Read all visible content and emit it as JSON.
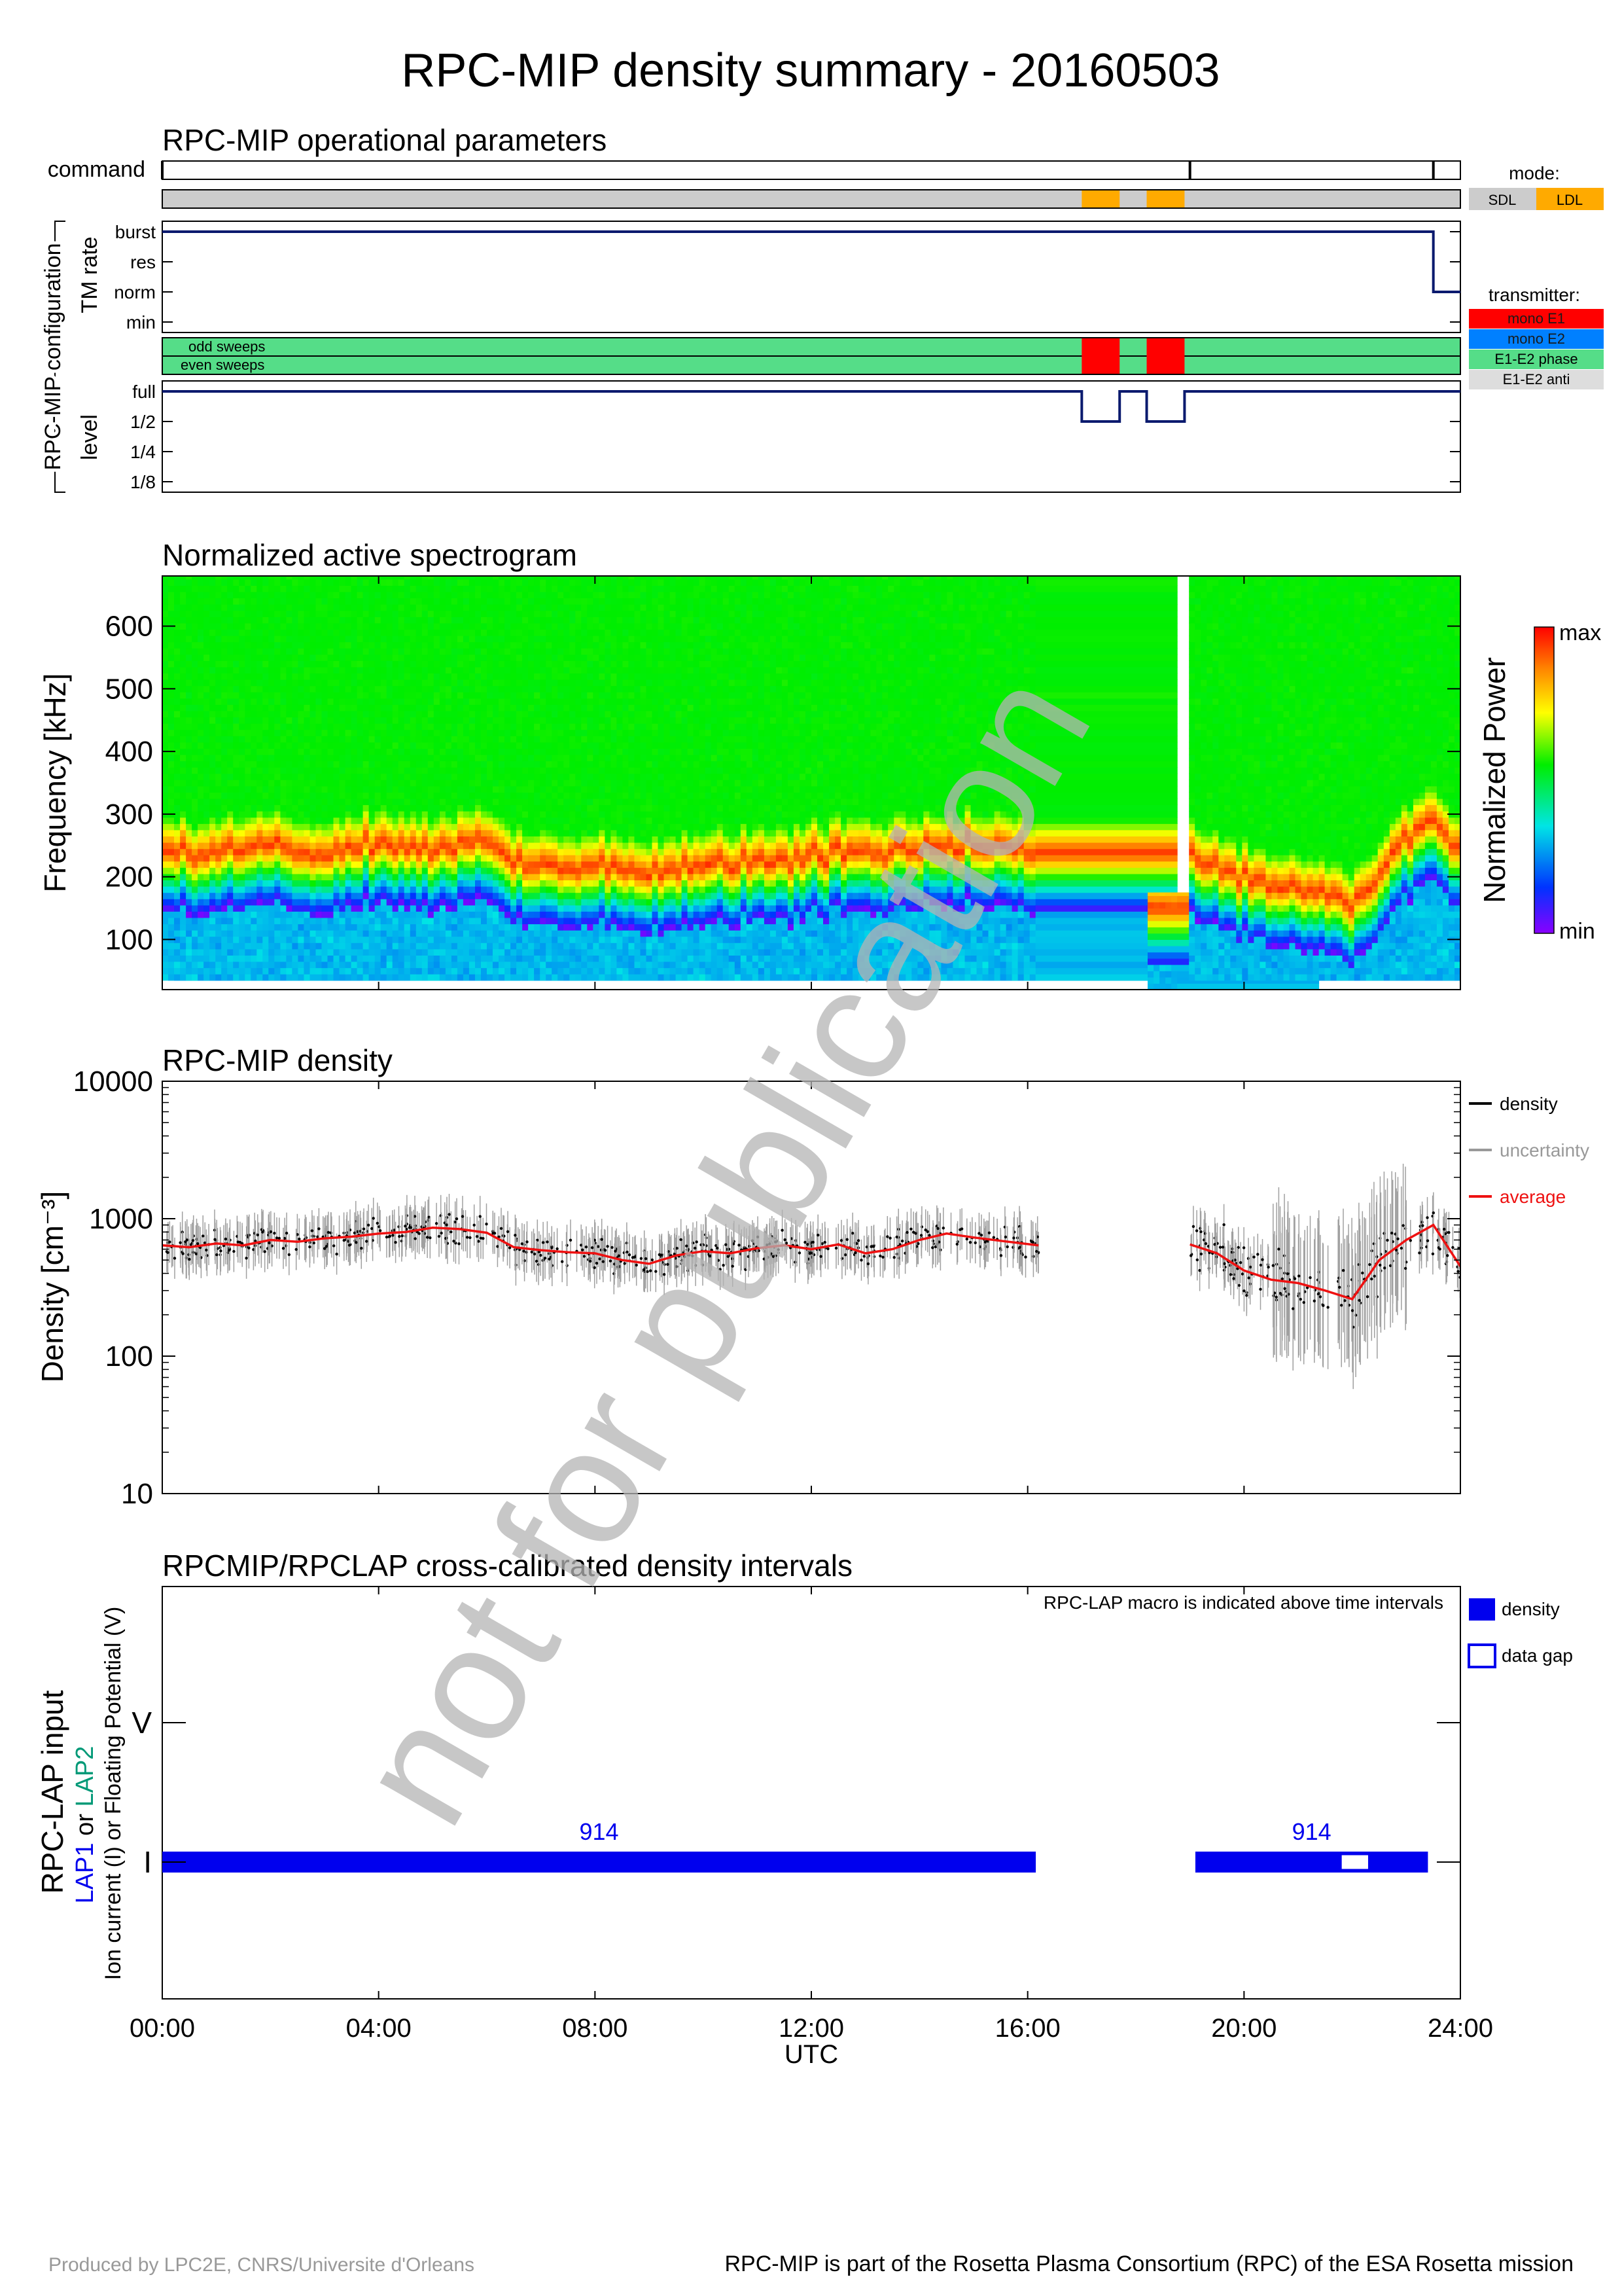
{
  "title": "RPC-MIP density summary - 20160503",
  "watermark": "not for publication",
  "footer": {
    "left": "Produced by LPC2E, CNRS/Universite d'Orleans",
    "right": "RPC-MIP is part of the Rosetta Plasma Consortium (RPC) of the ESA Rosetta mission"
  },
  "colors": {
    "navy": "#0a1a6e",
    "lap_blue": "#0000ee",
    "lap2_green": "#009977",
    "sdl_gray": "#cccccc",
    "ldl_orange": "#ffaa00",
    "mono_e1": "#ff0000",
    "mono_e2": "#0080ff",
    "phase": "#55dd88",
    "anti": "#dddddd",
    "average_red": "#ee1111",
    "uncertainty_gray": "#999999"
  },
  "time_axis": {
    "ticks": [
      "00:00",
      "04:00",
      "08:00",
      "12:00",
      "16:00",
      "20:00",
      "24:00"
    ],
    "label": "UTC"
  },
  "chart_data": [
    {
      "id": "operational",
      "type": "line",
      "title": "RPC-MIP operational parameters",
      "group_label": "RPC-MIP configuration",
      "command": {
        "label": "command",
        "ticks_hours": [
          0,
          19.0,
          23.5
        ]
      },
      "mode": {
        "legend_title": "mode:",
        "legend": [
          {
            "name": "SDL",
            "color": "#cccccc"
          },
          {
            "name": "LDL",
            "color": "#ffaa00"
          }
        ],
        "default": "SDL",
        "ldl_intervals_hours": [
          [
            17.0,
            17.7
          ],
          [
            18.2,
            18.9
          ]
        ]
      },
      "tm_rate": {
        "label": "TM rate",
        "levels": [
          "burst",
          "res",
          "norm",
          "min"
        ],
        "steps": [
          {
            "from": 0,
            "to": 23.5,
            "level": "burst"
          },
          {
            "from": 23.5,
            "to": 24,
            "level": "norm"
          }
        ]
      },
      "transmitter": {
        "legend_title": "transmitter:",
        "legend": [
          {
            "name": "mono E1",
            "color": "#ff0000"
          },
          {
            "name": "mono E2",
            "color": "#0080ff"
          },
          {
            "name": "E1-E2 phase",
            "color": "#55dd88"
          },
          {
            "name": "E1-E2 anti",
            "color": "#dddddd"
          }
        ],
        "rows": [
          "odd sweeps",
          "even sweeps"
        ],
        "default": "E1-E2 phase",
        "mono_e1_intervals_hours": [
          [
            17.0,
            17.7
          ],
          [
            18.2,
            18.9
          ]
        ]
      },
      "level": {
        "label": "level",
        "levels": [
          "full",
          "1/2",
          "1/4",
          "1/8"
        ],
        "steps": [
          {
            "from": 0,
            "to": 17.0,
            "level": "full"
          },
          {
            "from": 17.0,
            "to": 17.7,
            "level": "1/2"
          },
          {
            "from": 17.7,
            "to": 18.2,
            "level": "full"
          },
          {
            "from": 18.2,
            "to": 18.9,
            "level": "1/2"
          },
          {
            "from": 18.9,
            "to": 24,
            "level": "full"
          }
        ]
      }
    },
    {
      "id": "spectrogram",
      "type": "heatmap",
      "title": "Normalized active spectrogram",
      "ylabel": "Frequency [kHz]",
      "yticks": [
        100,
        200,
        300,
        400,
        500,
        600
      ],
      "ylim": [
        20,
        680
      ],
      "colorbar": {
        "label": "Normalized Power",
        "max_label": "max",
        "min_label": "min"
      },
      "data_gaps_hours": [
        [
          16.25,
          19.0
        ]
      ],
      "partial_block_hours": [
        18.2,
        18.9
      ],
      "partial_block_fmax": 175,
      "plasma_line_khz": {
        "hours": [
          0,
          1,
          2,
          3,
          4,
          5,
          6,
          6.5,
          7,
          8,
          9,
          10,
          11,
          12,
          13,
          14,
          15,
          16.2,
          19.0,
          20,
          21,
          21.5,
          22,
          22.5,
          23,
          23.5,
          24
        ],
        "values": [
          240,
          235,
          245,
          240,
          250,
          245,
          255,
          225,
          220,
          215,
          210,
          220,
          225,
          230,
          240,
          245,
          250,
          235,
          235,
          200,
          180,
          170,
          155,
          200,
          260,
          290,
          240
        ]
      }
    },
    {
      "id": "density",
      "type": "scatter",
      "title": "RPC-MIP density",
      "ylabel": "Density [cm⁻³]",
      "ylog": true,
      "yticks": [
        "10",
        "100",
        "1000",
        "10000"
      ],
      "ylim": [
        10,
        10000
      ],
      "legend": [
        {
          "name": "density",
          "color": "#000000"
        },
        {
          "name": "uncertainty",
          "color": "#999999"
        },
        {
          "name": "average",
          "color": "#ee1111"
        }
      ],
      "data_gaps_hours": [
        [
          16.25,
          19.0
        ]
      ],
      "average": {
        "hours": [
          0,
          0.5,
          1,
          1.5,
          2,
          2.5,
          3,
          3.5,
          4,
          4.5,
          5,
          5.5,
          6,
          6.5,
          7,
          7.5,
          8,
          8.5,
          9,
          9.5,
          10,
          10.5,
          11,
          11.5,
          12,
          12.5,
          13,
          13.5,
          14,
          14.5,
          15,
          15.5,
          16.2,
          19.0,
          19.5,
          20,
          20.5,
          21,
          21.5,
          22,
          22.5,
          23,
          23.5,
          24
        ],
        "values": [
          640,
          620,
          660,
          640,
          700,
          680,
          720,
          740,
          780,
          800,
          860,
          840,
          790,
          620,
          590,
          570,
          560,
          500,
          470,
          540,
          580,
          560,
          610,
          640,
          600,
          650,
          560,
          600,
          700,
          780,
          730,
          690,
          640,
          650,
          560,
          420,
          360,
          340,
          300,
          260,
          500,
          700,
          900,
          450
        ]
      }
    },
    {
      "id": "lap",
      "type": "bar",
      "title": "RPCMIP/RPCLAP cross-calibrated density intervals",
      "note": "RPC-LAP macro is indicated above time intervals",
      "ylabel_main": "RPC-LAP input",
      "ylabel_lap1": "LAP1",
      "ylabel_or": "or",
      "ylabel_lap2": "LAP2",
      "ylabel_sub": "Ion current (I) or Floating Potential (V)",
      "ycategories": [
        "I",
        "V"
      ],
      "legend": [
        {
          "name": "density",
          "style": "filled"
        },
        {
          "name": "data gap",
          "style": "outline"
        }
      ],
      "intervals": [
        {
          "from": 0.0,
          "to": 16.15,
          "channel": "I",
          "macro": "914"
        },
        {
          "from": 19.1,
          "to": 23.4,
          "channel": "I",
          "macro": "914"
        }
      ],
      "gaps": [
        {
          "from": 21.8,
          "to": 22.3,
          "channel": "I"
        }
      ]
    }
  ]
}
